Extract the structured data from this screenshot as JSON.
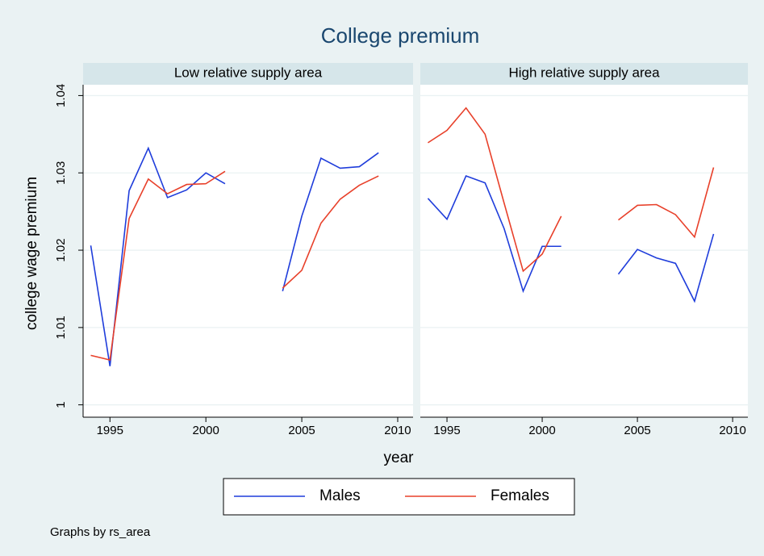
{
  "chart_data": {
    "type": "line",
    "title": "College premium",
    "x_label": "year",
    "y_label": "college wage premium",
    "note": "Graphs by rs_area",
    "x": [
      1994,
      1995,
      1996,
      1997,
      1998,
      1999,
      2000,
      2001,
      2002,
      2003,
      2004,
      2005,
      2006,
      2007,
      2008,
      2009
    ],
    "xlim": [
      1993.6,
      2010.8
    ],
    "xticks": [
      1995,
      2000,
      2005,
      2010
    ],
    "ylim": [
      0.9984,
      1.0414
    ],
    "yticks": [
      1,
      1.01,
      1.02,
      1.03,
      1.04
    ],
    "grid": true,
    "legend": "bottom",
    "series": [
      {
        "name": "Males",
        "color": "#1f3ddb"
      },
      {
        "name": "Females",
        "color": "#e8402a"
      }
    ],
    "panels": [
      {
        "title": "Low relative supply area",
        "values": [
          [
            1.0206,
            1.005,
            1.0277,
            1.0332,
            1.0268,
            1.0278,
            1.03,
            1.0286,
            null,
            null,
            1.0147,
            1.0244,
            1.0319,
            1.0306,
            1.0308,
            1.0326
          ],
          [
            1.0064,
            1.0058,
            1.0241,
            1.0292,
            1.0273,
            1.0285,
            1.0286,
            1.0302,
            null,
            null,
            1.0151,
            1.0174,
            1.0235,
            1.0266,
            1.0284,
            1.0296
          ]
        ]
      },
      {
        "title": "High relative supply area",
        "values": [
          [
            1.0267,
            1.024,
            1.0296,
            1.0287,
            1.0228,
            1.0147,
            1.0205,
            1.0205,
            null,
            null,
            1.0169,
            1.0201,
            1.019,
            1.0183,
            1.0134,
            1.0221
          ],
          [
            1.0339,
            1.0355,
            1.0384,
            1.035,
            1.0261,
            1.0173,
            1.0195,
            1.0244,
            null,
            null,
            1.0239,
            1.0258,
            1.0259,
            1.0246,
            1.0217,
            1.0307
          ]
        ]
      }
    ]
  }
}
